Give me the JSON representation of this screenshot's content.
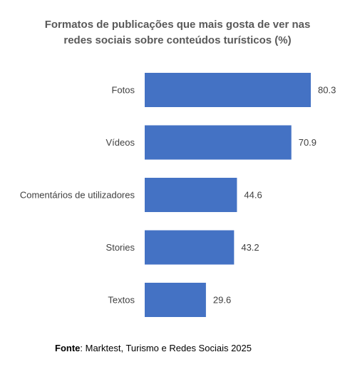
{
  "chart_data": {
    "type": "bar",
    "orientation": "horizontal",
    "title_lines": [
      "Formatos de publicações que mais gosta de ver nas",
      "redes sociais sobre conteúdos turísticos (%)"
    ],
    "categories": [
      "Fotos",
      "Vídeos",
      "Comentários de utilizadores",
      "Stories",
      "Textos"
    ],
    "values": [
      80.3,
      70.9,
      44.6,
      43.2,
      29.6
    ],
    "value_labels": [
      "80.3",
      "70.9",
      "44.6",
      "43.2",
      "29.6"
    ],
    "xlim": [
      0,
      80.3
    ],
    "grid": false,
    "legend": "none",
    "bar_color": "#4472C4"
  },
  "source": {
    "label": "Fonte",
    "text": ": Marktest, Turismo e Redes Sociais 2025"
  }
}
